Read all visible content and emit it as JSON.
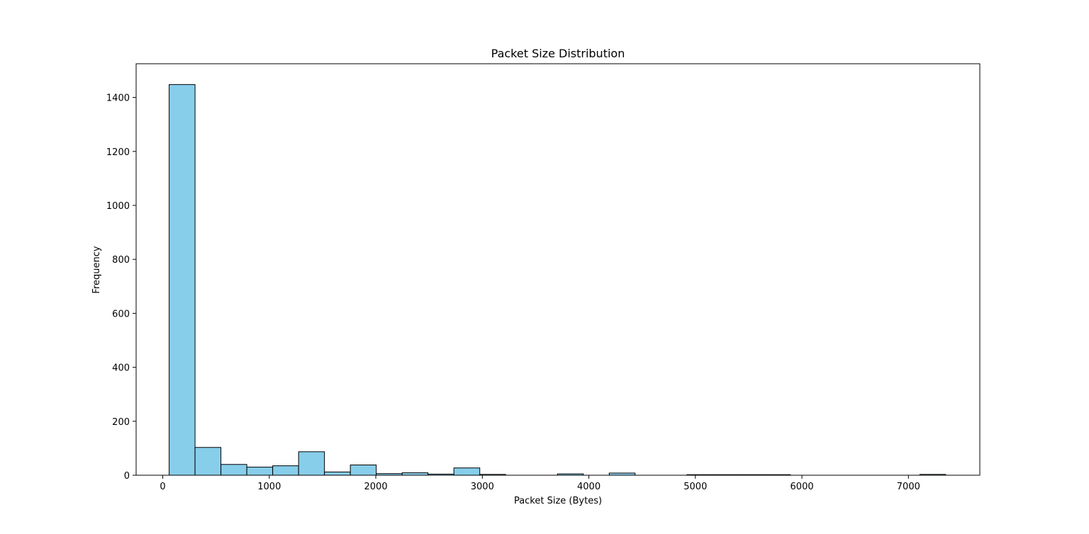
{
  "chart_data": {
    "type": "bar",
    "title": "Packet Size Distribution",
    "xlabel": "Packet Size (Bytes)",
    "ylabel": "Frequency",
    "xlim": [
      -250,
      7670
    ],
    "ylim": [
      0,
      1525
    ],
    "xticks": [
      0,
      1000,
      2000,
      3000,
      4000,
      5000,
      6000,
      7000
    ],
    "yticks": [
      0,
      200,
      400,
      600,
      800,
      1000,
      1200,
      1400
    ],
    "bin_edges": [
      60,
      303,
      546,
      789,
      1032,
      1275,
      1518,
      1761,
      2004,
      2247,
      2490,
      2733,
      2976,
      3219,
      3462,
      3705,
      3948,
      4191,
      4434,
      4677,
      4920,
      5163,
      5406,
      5649,
      5892,
      6135,
      6378,
      6621,
      6864,
      7107,
      7350
    ],
    "values": [
      1448,
      103,
      40,
      30,
      35,
      87,
      12,
      38,
      6,
      9,
      4,
      27,
      3,
      0,
      0,
      5,
      0,
      8,
      0,
      0,
      2,
      2,
      2,
      2,
      0,
      0,
      0,
      0,
      0,
      3
    ],
    "bar_color": "#87ceeb",
    "edge_color": "#000000",
    "grid": false
  }
}
